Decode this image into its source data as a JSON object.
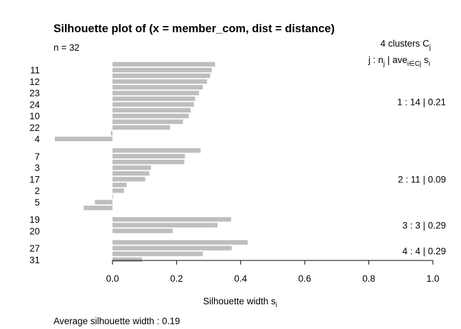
{
  "chart_data": {
    "type": "bar",
    "orientation": "horizontal",
    "title": "Silhouette plot of (x = member_com, dist = distance)",
    "n_label": "n = 32",
    "clusters_header": {
      "count_text": "4  clusters  C",
      "subscript": "j"
    },
    "legend_header": {
      "prefix": "j :  n",
      "mid": " | ave",
      "sub": "i∈Cj",
      "s": "  s",
      "s_sub": "i"
    },
    "xlabel": "Silhouette width s",
    "xlabel_sub": "i",
    "xlim": [
      -0.18,
      1.0
    ],
    "xticks": [
      "0.0",
      "0.2",
      "0.4",
      "0.6",
      "0.8",
      "1.0"
    ],
    "bar_color": "#bebebe",
    "average_text": "Average silhouette width :  0.19",
    "clusters": [
      {
        "summary": "1 :   14  |  0.21",
        "labels": [
          "",
          "11",
          "",
          "12",
          "",
          "23",
          "",
          "24",
          "",
          "10",
          "",
          "22",
          "",
          "4"
        ],
        "values": [
          0.32,
          0.31,
          0.305,
          0.295,
          0.282,
          0.27,
          0.258,
          0.254,
          0.244,
          0.238,
          0.22,
          0.18,
          -0.005,
          -0.18
        ]
      },
      {
        "summary": "2 :   11  |  0.09",
        "labels": [
          "",
          "7",
          "",
          "3",
          "",
          "17",
          "",
          "2",
          "",
          "5",
          ""
        ],
        "values": [
          0.275,
          0.226,
          0.224,
          0.12,
          0.115,
          0.102,
          0.044,
          0.036,
          0.002,
          -0.055,
          -0.09
        ]
      },
      {
        "summary": "3 :   3  |  0.29",
        "labels": [
          "19",
          "",
          "20"
        ],
        "values": [
          0.37,
          0.328,
          0.188
        ]
      },
      {
        "summary": "4 :   4  |  0.29",
        "labels": [
          "",
          "27",
          "",
          "31"
        ],
        "values": [
          0.422,
          0.372,
          0.282,
          0.092
        ]
      }
    ]
  }
}
